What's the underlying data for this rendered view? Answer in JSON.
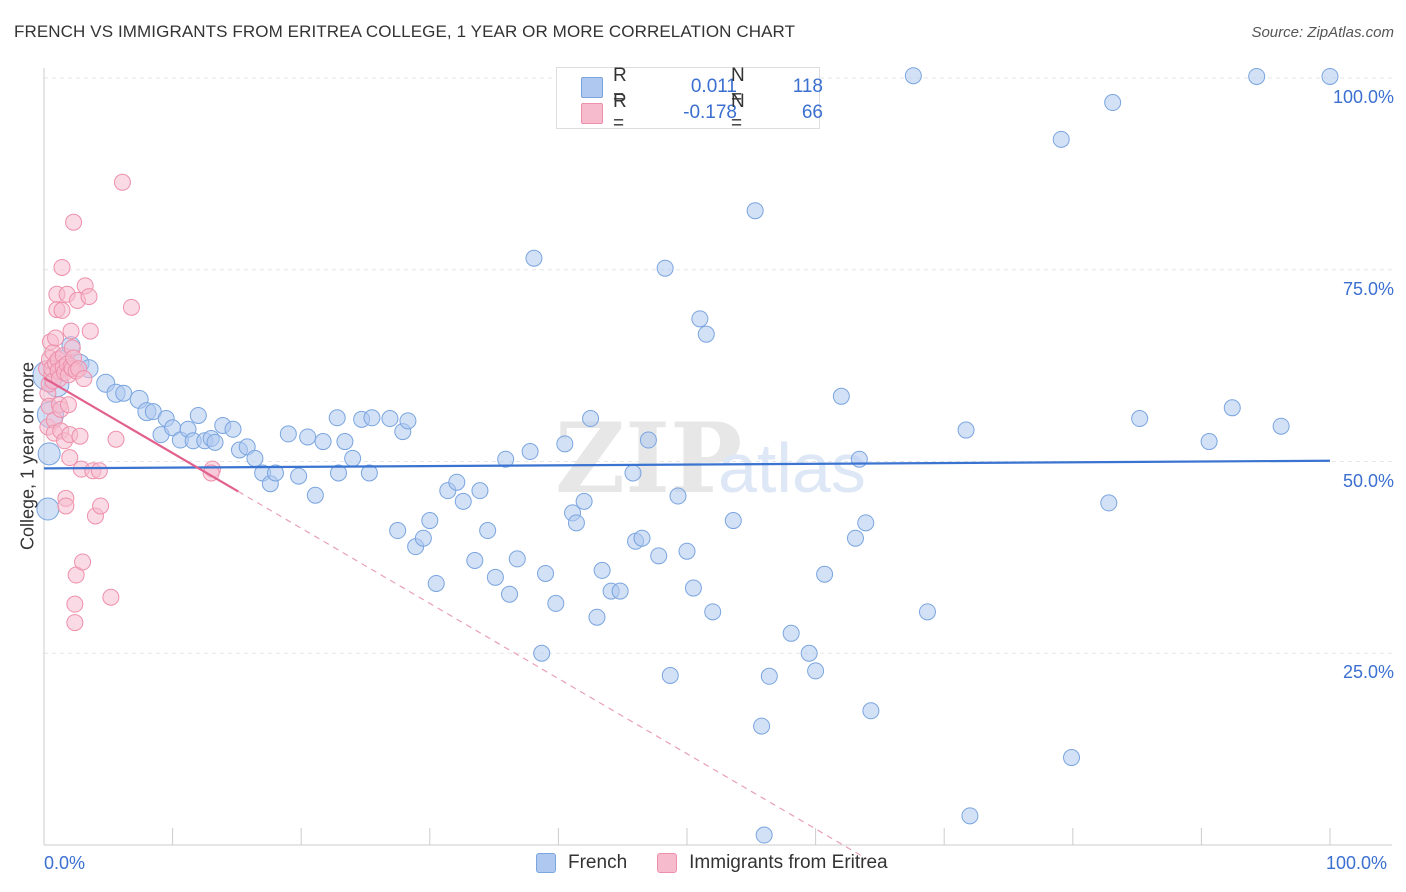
{
  "header": {
    "title": "FRENCH VS IMMIGRANTS FROM ERITREA COLLEGE, 1 YEAR OR MORE CORRELATION CHART",
    "source": "Source: ZipAtlas.com"
  },
  "watermark": {
    "zip": "ZIP",
    "atlas": "atlas"
  },
  "legend_top": [
    {
      "r_label": "R =",
      "r_value": "0.011",
      "n_label": "N =",
      "n_value": "118",
      "color": "#aec8f0"
    },
    {
      "r_label": "R =",
      "r_value": "-0.178",
      "n_label": "N =",
      "n_value": "66",
      "color": "#f6bccd"
    }
  ],
  "legend_bottom": [
    {
      "label": "French",
      "color": "#aec8f0"
    },
    {
      "label": "Immigrants from Eritrea",
      "color": "#f6bccd"
    }
  ],
  "chart_data": {
    "type": "scatter",
    "title": "FRENCH VS IMMIGRANTS FROM ERITREA COLLEGE, 1 YEAR OR MORE CORRELATION CHART",
    "xlabel": "",
    "ylabel": "College, 1 year or more",
    "xlim": [
      0,
      100
    ],
    "ylim": [
      0,
      100
    ],
    "x_tick_labels": [
      "0.0%",
      "100.0%"
    ],
    "y_tick_labels": [
      {
        "value": 100,
        "label": "100.0%"
      },
      {
        "value": 75,
        "label": "75.0%"
      },
      {
        "value": 50,
        "label": "50.0%"
      },
      {
        "value": 25,
        "label": "25.0%"
      }
    ],
    "grid": true,
    "series": [
      {
        "name": "French",
        "color": "#aec8f0",
        "stroke": "#7aa5df",
        "trend": {
          "x": [
            0,
            100
          ],
          "y": [
            49.1,
            50.1
          ],
          "color": "#3b74d0",
          "dashed_extension": false
        },
        "points": [
          [
            0.3,
            61.2,
            14
          ],
          [
            0.5,
            56.1,
            12
          ],
          [
            0.4,
            51.0,
            10
          ],
          [
            0.3,
            43.8,
            10
          ],
          [
            1.0,
            60.0,
            11
          ],
          [
            1.4,
            63.2,
            9
          ],
          [
            2.1,
            65.1,
            8
          ],
          [
            2.8,
            62.8,
            8
          ],
          [
            3.5,
            62.1,
            8
          ],
          [
            4.8,
            60.2,
            8
          ],
          [
            5.6,
            58.9,
            8
          ],
          [
            6.2,
            58.9,
            7
          ],
          [
            7.4,
            58.1,
            8
          ],
          [
            8.0,
            56.5,
            8
          ],
          [
            8.5,
            56.5,
            7
          ],
          [
            9.1,
            53.5,
            7
          ],
          [
            9.5,
            55.6,
            7
          ],
          [
            10.0,
            54.4,
            7
          ],
          [
            10.6,
            52.8,
            7
          ],
          [
            11.2,
            54.2,
            7
          ],
          [
            11.6,
            52.7,
            7
          ],
          [
            12.0,
            56.0,
            7
          ],
          [
            12.5,
            52.7,
            7
          ],
          [
            13.0,
            53.0,
            7
          ],
          [
            13.3,
            52.5,
            7
          ],
          [
            13.9,
            54.7,
            7
          ],
          [
            14.7,
            54.2,
            7
          ],
          [
            15.2,
            51.5,
            7
          ],
          [
            15.8,
            51.9,
            7
          ],
          [
            16.4,
            50.4,
            7
          ],
          [
            17.0,
            48.5,
            7
          ],
          [
            17.6,
            47.1,
            7
          ],
          [
            18.0,
            48.5,
            7
          ],
          [
            19.0,
            53.6,
            7
          ],
          [
            19.8,
            48.1,
            7
          ],
          [
            20.5,
            53.2,
            7
          ],
          [
            21.1,
            45.6,
            7
          ],
          [
            21.7,
            52.6,
            7
          ],
          [
            22.8,
            55.7,
            7
          ],
          [
            22.9,
            48.5,
            7
          ],
          [
            23.4,
            52.6,
            7
          ],
          [
            24.0,
            50.4,
            7
          ],
          [
            24.7,
            55.5,
            7
          ],
          [
            25.3,
            48.5,
            7
          ],
          [
            25.5,
            55.7,
            7
          ],
          [
            26.9,
            55.6,
            7
          ],
          [
            27.5,
            41.0,
            7
          ],
          [
            27.9,
            53.9,
            7
          ],
          [
            28.3,
            55.3,
            7
          ],
          [
            28.9,
            38.9,
            7
          ],
          [
            29.5,
            40.0,
            7
          ],
          [
            30.0,
            42.3,
            7
          ],
          [
            30.5,
            34.1,
            7
          ],
          [
            31.4,
            46.2,
            7
          ],
          [
            32.1,
            47.3,
            7
          ],
          [
            32.6,
            44.8,
            7
          ],
          [
            33.5,
            37.1,
            7
          ],
          [
            33.9,
            46.2,
            7
          ],
          [
            34.5,
            41.0,
            7
          ],
          [
            35.1,
            34.9,
            7
          ],
          [
            35.9,
            50.3,
            7
          ],
          [
            36.2,
            32.7,
            7
          ],
          [
            36.8,
            37.3,
            7
          ],
          [
            37.8,
            51.3,
            7
          ],
          [
            38.1,
            76.5,
            7
          ],
          [
            38.7,
            25.0,
            7
          ],
          [
            39.0,
            35.4,
            7
          ],
          [
            39.8,
            31.5,
            7
          ],
          [
            40.5,
            52.3,
            7
          ],
          [
            41.1,
            43.3,
            7
          ],
          [
            41.4,
            42.0,
            7
          ],
          [
            42.0,
            44.8,
            7
          ],
          [
            42.5,
            55.6,
            7
          ],
          [
            43.0,
            29.7,
            7
          ],
          [
            43.4,
            35.8,
            7
          ],
          [
            44.1,
            33.1,
            7
          ],
          [
            44.8,
            33.1,
            7
          ],
          [
            45.8,
            48.5,
            7
          ],
          [
            46.0,
            39.6,
            7
          ],
          [
            46.5,
            40.0,
            7
          ],
          [
            47.0,
            52.8,
            7
          ],
          [
            47.8,
            37.7,
            7
          ],
          [
            48.3,
            75.2,
            7
          ],
          [
            48.7,
            22.1,
            7
          ],
          [
            49.3,
            45.5,
            7
          ],
          [
            50.0,
            38.3,
            7
          ],
          [
            50.5,
            33.5,
            7
          ],
          [
            51.0,
            68.6,
            7
          ],
          [
            51.5,
            66.6,
            7
          ],
          [
            52.0,
            30.4,
            7
          ],
          [
            53.6,
            42.3,
            7
          ],
          [
            55.3,
            82.7,
            7
          ],
          [
            55.8,
            15.5,
            7
          ],
          [
            56.4,
            22.0,
            7
          ],
          [
            56.0,
            1.3,
            7
          ],
          [
            58.1,
            27.6,
            7
          ],
          [
            59.5,
            25.0,
            7
          ],
          [
            60.0,
            22.7,
            7
          ],
          [
            60.7,
            35.3,
            7
          ],
          [
            62.0,
            58.5,
            7
          ],
          [
            63.1,
            40.0,
            7
          ],
          [
            63.4,
            50.3,
            7
          ],
          [
            64.3,
            17.5,
            7
          ],
          [
            63.9,
            42.0,
            7
          ],
          [
            67.6,
            100.3,
            7
          ],
          [
            68.7,
            30.4,
            7
          ],
          [
            71.7,
            54.1,
            7
          ],
          [
            72.0,
            3.8,
            7
          ],
          [
            79.1,
            92.0,
            7
          ],
          [
            79.9,
            11.4,
            7
          ],
          [
            82.8,
            44.6,
            7
          ],
          [
            83.1,
            96.8,
            7
          ],
          [
            85.2,
            55.6,
            7
          ],
          [
            90.6,
            52.6,
            7
          ],
          [
            92.4,
            57.0,
            7
          ],
          [
            94.3,
            100.2,
            7
          ],
          [
            96.2,
            54.6,
            7
          ],
          [
            100.0,
            100.2,
            7
          ]
        ]
      },
      {
        "name": "Immigrants from Eritrea",
        "color": "#f6bccd",
        "stroke": "#ee90ab",
        "trend": {
          "x": [
            0,
            15.1
          ],
          "y": [
            60.9,
            46.1
          ],
          "color": "#e2608c",
          "dashed_extension": true,
          "dashed_to_x": 64.0
        },
        "points": [
          [
            0.2,
            62.1,
            7
          ],
          [
            0.3,
            58.9,
            7
          ],
          [
            0.3,
            54.5,
            7
          ],
          [
            0.4,
            60.1,
            7
          ],
          [
            0.4,
            57.2,
            7
          ],
          [
            0.5,
            63.3,
            8
          ],
          [
            0.5,
            65.6,
            7
          ],
          [
            0.6,
            61.3,
            7
          ],
          [
            0.6,
            62.1,
            7
          ],
          [
            0.7,
            60.5,
            7
          ],
          [
            0.7,
            64.2,
            7
          ],
          [
            0.8,
            55.4,
            7
          ],
          [
            0.8,
            53.7,
            7
          ],
          [
            0.9,
            62.8,
            7
          ],
          [
            0.9,
            66.1,
            7
          ],
          [
            1.0,
            69.8,
            7
          ],
          [
            1.0,
            71.8,
            7
          ],
          [
            1.1,
            63.3,
            7
          ],
          [
            1.1,
            61.8,
            7
          ],
          [
            1.2,
            60.8,
            7
          ],
          [
            1.2,
            57.4,
            7
          ],
          [
            1.3,
            54.0,
            7
          ],
          [
            1.3,
            56.8,
            7
          ],
          [
            1.4,
            75.3,
            7
          ],
          [
            1.4,
            69.7,
            7
          ],
          [
            1.5,
            63.8,
            7
          ],
          [
            1.5,
            62.3,
            7
          ],
          [
            1.6,
            61.6,
            7
          ],
          [
            1.6,
            52.7,
            7
          ],
          [
            1.7,
            45.2,
            7
          ],
          [
            1.7,
            44.2,
            7
          ],
          [
            1.8,
            71.8,
            7
          ],
          [
            1.8,
            62.7,
            7
          ],
          [
            1.9,
            61.3,
            7
          ],
          [
            1.9,
            57.4,
            7
          ],
          [
            2.0,
            53.5,
            7
          ],
          [
            2.0,
            50.5,
            7
          ],
          [
            2.1,
            67.0,
            7
          ],
          [
            2.1,
            62.4,
            7
          ],
          [
            2.2,
            64.8,
            7
          ],
          [
            2.2,
            62.1,
            7
          ],
          [
            2.3,
            81.2,
            7
          ],
          [
            2.3,
            63.5,
            7
          ],
          [
            2.4,
            31.4,
            7
          ],
          [
            2.4,
            29.0,
            7
          ],
          [
            2.5,
            61.8,
            7
          ],
          [
            2.5,
            35.2,
            7
          ],
          [
            2.6,
            71.0,
            7
          ],
          [
            2.7,
            62.1,
            7
          ],
          [
            2.8,
            53.3,
            7
          ],
          [
            2.9,
            49.0,
            7
          ],
          [
            3.0,
            36.9,
            7
          ],
          [
            3.1,
            60.8,
            7
          ],
          [
            3.2,
            72.9,
            7
          ],
          [
            3.5,
            71.5,
            7
          ],
          [
            3.6,
            67.0,
            7
          ],
          [
            3.8,
            48.8,
            7
          ],
          [
            4.0,
            42.9,
            7
          ],
          [
            4.3,
            48.8,
            7
          ],
          [
            4.4,
            44.2,
            7
          ],
          [
            5.2,
            32.3,
            7
          ],
          [
            5.6,
            52.9,
            7
          ],
          [
            6.1,
            86.4,
            7
          ],
          [
            6.8,
            70.1,
            7
          ],
          [
            13.1,
            49.0,
            7
          ],
          [
            13.0,
            48.5,
            7
          ]
        ]
      }
    ]
  }
}
